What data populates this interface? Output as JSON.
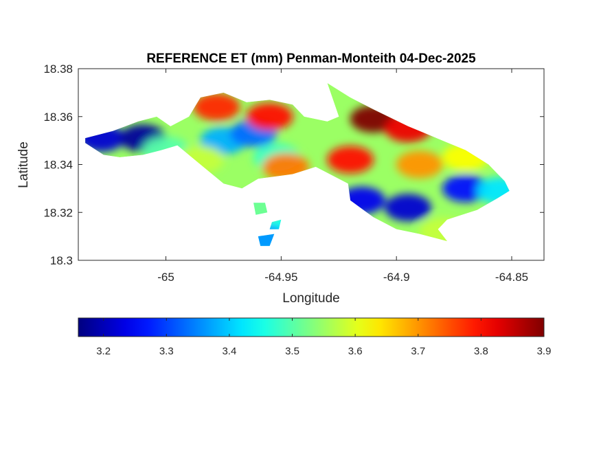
{
  "chart_data": {
    "type": "heatmap",
    "title": "REFERENCE ET (mm) Penman-Monteith 04-Dec-2025",
    "xlabel": "Longitude",
    "ylabel": "Latitude",
    "xlim": [
      -65.038,
      -64.836
    ],
    "ylim": [
      18.3,
      18.38
    ],
    "x_ticks": [
      -65.0,
      -64.95,
      -64.9,
      -64.85
    ],
    "x_tick_labels": [
      "-65",
      "-64.95",
      "-64.9",
      "-64.85"
    ],
    "y_ticks": [
      18.3,
      18.32,
      18.34,
      18.36,
      18.38
    ],
    "y_tick_labels": [
      "18.3",
      "18.32",
      "18.34",
      "18.36",
      "18.38"
    ],
    "colorbar": {
      "colormap": "jet",
      "range": [
        3.16,
        3.9
      ],
      "ticks": [
        3.2,
        3.3,
        3.4,
        3.5,
        3.6,
        3.7,
        3.8,
        3.9
      ],
      "tick_labels": [
        "3.2",
        "3.3",
        "3.4",
        "3.5",
        "3.6",
        "3.7",
        "3.8",
        "3.9"
      ],
      "orientation": "horizontal",
      "placement": "below"
    },
    "grid": false,
    "region_outline": [
      [
        -65.035,
        18.351
      ],
      [
        -65.023,
        18.354
      ],
      [
        -65.012,
        18.358
      ],
      [
        -65.004,
        18.36
      ],
      [
        -64.998,
        18.356
      ],
      [
        -64.99,
        18.36
      ],
      [
        -64.985,
        18.368
      ],
      [
        -64.975,
        18.37
      ],
      [
        -64.965,
        18.366
      ],
      [
        -64.955,
        18.367
      ],
      [
        -64.945,
        18.365
      ],
      [
        -64.94,
        18.36
      ],
      [
        -64.93,
        18.358
      ],
      [
        -64.925,
        18.36
      ],
      [
        -64.93,
        18.374
      ],
      [
        -64.92,
        18.368
      ],
      [
        -64.91,
        18.363
      ],
      [
        -64.895,
        18.356
      ],
      [
        -64.885,
        18.352
      ],
      [
        -64.87,
        18.346
      ],
      [
        -64.86,
        18.34
      ],
      [
        -64.853,
        18.333
      ],
      [
        -64.851,
        18.329
      ],
      [
        -64.856,
        18.326
      ],
      [
        -64.865,
        18.321
      ],
      [
        -64.878,
        18.317
      ],
      [
        -64.882,
        18.313
      ],
      [
        -64.878,
        18.308
      ],
      [
        -64.89,
        18.311
      ],
      [
        -64.9,
        18.313
      ],
      [
        -64.91,
        18.318
      ],
      [
        -64.92,
        18.325
      ],
      [
        -64.921,
        18.332
      ],
      [
        -64.935,
        18.339
      ],
      [
        -64.945,
        18.336
      ],
      [
        -64.96,
        18.334
      ],
      [
        -64.967,
        18.33
      ],
      [
        -64.975,
        18.332
      ],
      [
        -64.985,
        18.34
      ],
      [
        -64.995,
        18.348
      ],
      [
        -65.002,
        18.346
      ],
      [
        -65.01,
        18.344
      ],
      [
        -65.02,
        18.343
      ],
      [
        -65.027,
        18.344
      ],
      [
        -65.035,
        18.349
      ]
    ],
    "islets": [
      [
        [
          -64.962,
          18.324
        ],
        [
          -64.957,
          18.324
        ],
        [
          -64.956,
          18.32
        ],
        [
          -64.961,
          18.319
        ]
      ],
      [
        [
          -64.954,
          18.316
        ],
        [
          -64.95,
          18.317
        ],
        [
          -64.951,
          18.313
        ],
        [
          -64.955,
          18.313
        ]
      ],
      [
        [
          -64.96,
          18.31
        ],
        [
          -64.953,
          18.311
        ],
        [
          -64.955,
          18.306
        ],
        [
          -64.959,
          18.306
        ]
      ]
    ],
    "value_hotspots": [
      {
        "lon": -65.028,
        "lat": 18.351,
        "value": 3.22
      },
      {
        "lon": -65.01,
        "lat": 18.351,
        "value": 3.18
      },
      {
        "lon": -64.975,
        "lat": 18.35,
        "value": 3.38
      },
      {
        "lon": -64.962,
        "lat": 18.353,
        "value": 3.33
      },
      {
        "lon": -64.952,
        "lat": 18.343,
        "value": 3.48
      },
      {
        "lon": -64.948,
        "lat": 18.339,
        "value": 3.72
      },
      {
        "lon": -64.978,
        "lat": 18.364,
        "value": 3.78
      },
      {
        "lon": -64.955,
        "lat": 18.36,
        "value": 3.8
      },
      {
        "lon": -64.91,
        "lat": 18.359,
        "value": 3.9
      },
      {
        "lon": -64.895,
        "lat": 18.355,
        "value": 3.82
      },
      {
        "lon": -64.92,
        "lat": 18.342,
        "value": 3.8
      },
      {
        "lon": -64.89,
        "lat": 18.34,
        "value": 3.7
      },
      {
        "lon": -64.87,
        "lat": 18.343,
        "value": 3.62
      },
      {
        "lon": -64.915,
        "lat": 18.325,
        "value": 3.24
      },
      {
        "lon": -64.895,
        "lat": 18.322,
        "value": 3.22
      },
      {
        "lon": -64.87,
        "lat": 18.33,
        "value": 3.26
      },
      {
        "lon": -64.855,
        "lat": 18.329,
        "value": 3.42
      },
      {
        "lon": -64.88,
        "lat": 18.312,
        "value": 3.58
      },
      {
        "lon": -65.0,
        "lat": 18.346,
        "value": 3.5
      },
      {
        "lon": -64.985,
        "lat": 18.342,
        "value": 3.58
      },
      {
        "lon": -64.958,
        "lat": 18.322,
        "value": 3.52
      },
      {
        "lon": -64.958,
        "lat": 18.309,
        "value": 3.36
      }
    ]
  },
  "colors": {
    "background": "#ffffff",
    "axes_frame": "#262626"
  }
}
